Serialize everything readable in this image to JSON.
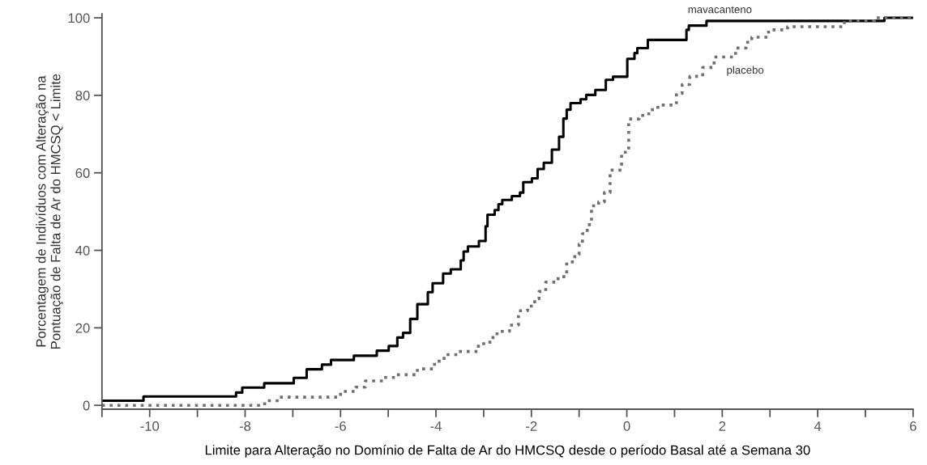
{
  "chart_data": {
    "type": "step",
    "xlabel": "Limite para Alteração no Domínio de Falta de Ar do HMCSQ desde o período Basal até a Semana 30",
    "ylabel": "Porcentagem de Indivíduos com Alteração na\nPontuação de Falta de Ar do HMCSQ < Limite",
    "xlim": [
      -11,
      6
    ],
    "ylim": [
      -1,
      101
    ],
    "xticks": [
      {
        "value": -11,
        "label": null
      },
      -10,
      {
        "value": -9,
        "label": null
      },
      -8,
      {
        "value": -7,
        "label": null
      },
      -6,
      {
        "value": -5,
        "label": null
      },
      -4,
      {
        "value": -3,
        "label": null
      },
      -2,
      {
        "value": -1,
        "label": null
      },
      0,
      {
        "value": 1,
        "label": null
      },
      2,
      {
        "value": 3,
        "label": null
      },
      4,
      {
        "value": 5,
        "label": null
      },
      6
    ],
    "yticks": [
      0,
      20,
      40,
      60,
      80,
      100
    ],
    "grid": false,
    "marker": "none",
    "series": [
      {
        "color": "#000000",
        "line_style": "solid",
        "x": [
          -11,
          -10.13,
          -8.19,
          -8.06,
          -7.6,
          -6.98,
          -6.71,
          -6.39,
          -6.2,
          -5.72,
          -5.24,
          -4.99,
          -4.81,
          -4.69,
          -4.54,
          -4.39,
          -4.17,
          -4.07,
          -3.85,
          -3.69,
          -3.48,
          -3.42,
          -3.33,
          -3.1,
          -2.96,
          -2.92,
          -2.77,
          -2.69,
          -2.61,
          -2.41,
          -2.24,
          -2.17,
          -1.99,
          -1.87,
          -1.74,
          -1.57,
          -1.42,
          -1.33,
          -1.26,
          -1.18,
          -0.97,
          -0.85,
          -0.66,
          -0.44,
          -0.29,
          0.01,
          0.16,
          0.22,
          0.44,
          1.25,
          1.3,
          1.67,
          5.4,
          6
        ],
        "values": [
          1.2,
          2.3,
          3.3,
          4.6,
          5.7,
          7.1,
          9.3,
          10.5,
          11.7,
          12.8,
          14.1,
          15.3,
          17.5,
          18.7,
          22.3,
          26.1,
          29.2,
          31.5,
          34,
          35.1,
          37.4,
          39.7,
          41,
          42.4,
          46.2,
          49.2,
          50.4,
          51.9,
          53,
          54,
          54.9,
          57.6,
          58.6,
          61,
          62.6,
          66,
          69.3,
          74,
          76.3,
          78,
          79,
          80.1,
          81.4,
          84,
          84.8,
          89.4,
          90.9,
          92.2,
          94.3,
          96.9,
          98,
          99.2,
          100,
          100
        ]
      },
      {
        "color": "#707070",
        "line_style": "dotted",
        "x": [
          -11,
          -7.59,
          -7.29,
          -6.0,
          -5.68,
          -5.48,
          -5.1,
          -4.86,
          -4.39,
          -4.03,
          -3.83,
          -3.54,
          -3.11,
          -2.87,
          -2.72,
          -2.46,
          -2.27,
          -2.08,
          -1.93,
          -1.84,
          -1.7,
          -1.44,
          -1.26,
          -1.09,
          -1.0,
          -0.93,
          -0.83,
          -0.74,
          -0.59,
          -0.47,
          -0.35,
          -0.11,
          0.04,
          0.26,
          0.46,
          0.65,
          1.04,
          1.16,
          1.32,
          1.59,
          1.83,
          2.28,
          2.5,
          2.62,
          2.97,
          3.37,
          4.56,
          5.19,
          6
        ],
        "values": [
          0,
          1.2,
          2.1,
          3.6,
          4.7,
          6.3,
          7.2,
          7.9,
          9.4,
          11.4,
          13.1,
          13.9,
          15.9,
          17.5,
          19.1,
          20.7,
          24.4,
          25.6,
          27.5,
          29.4,
          31.8,
          33.2,
          37,
          38.9,
          41.6,
          44.3,
          46.6,
          51.5,
          52.5,
          54.9,
          60.7,
          65.3,
          73.9,
          74.8,
          76.3,
          77.5,
          80.5,
          82.8,
          84.9,
          87.2,
          89.9,
          92.2,
          93.7,
          95,
          96.9,
          97.7,
          99.2,
          100,
          100
        ]
      }
    ],
    "annotations": [
      {
        "text": "mavacanteno",
        "x": 1.95,
        "y": 99.2
      },
      {
        "text": "placebo",
        "x": 1.9,
        "y": 89.9
      }
    ]
  }
}
